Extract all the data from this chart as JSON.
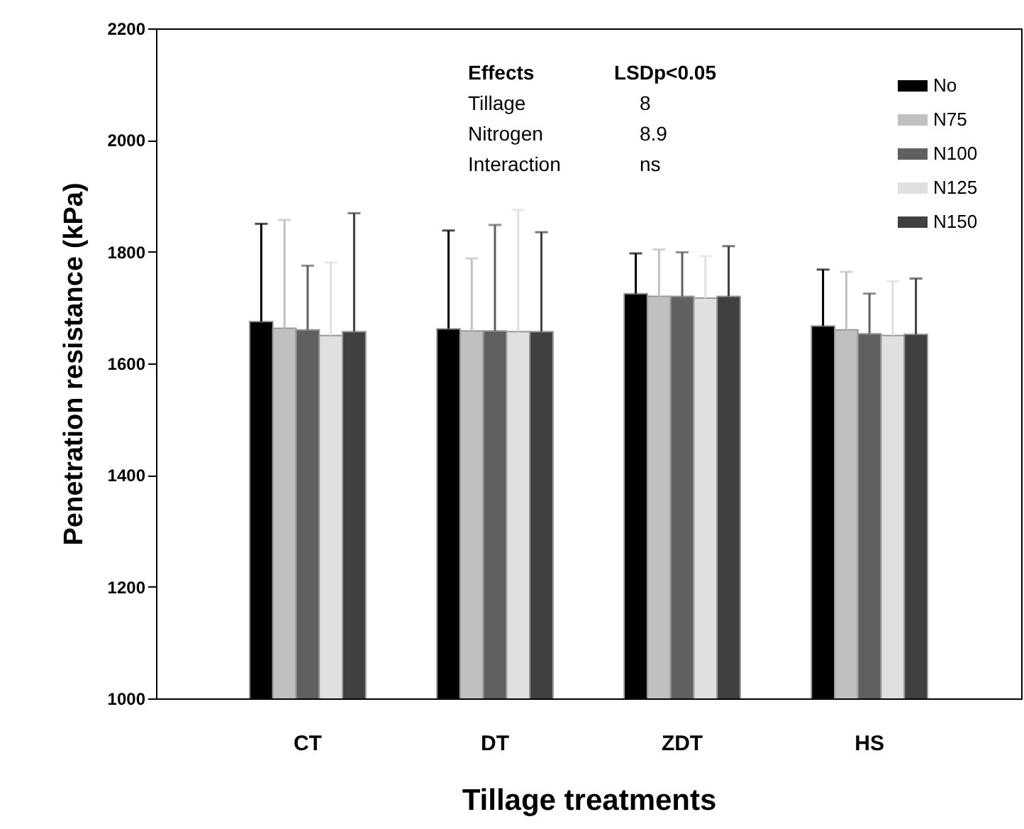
{
  "chart_data": {
    "type": "bar",
    "xlabel": "Tillage treatments",
    "ylabel": "Penetration resistance (kPa)",
    "categories": [
      "CT",
      "DT",
      "ZDT",
      "HS"
    ],
    "series": [
      {
        "name": "No",
        "color": "#000000",
        "values": [
          1675,
          1662,
          1725,
          1667
        ],
        "errors": [
          175,
          176,
          72,
          101
        ]
      },
      {
        "name": "N75",
        "color": "#c0c0c0",
        "values": [
          1663,
          1658,
          1720,
          1660
        ],
        "errors": [
          194,
          130,
          84,
          104
        ]
      },
      {
        "name": "N100",
        "color": "#606060",
        "values": [
          1660,
          1658,
          1720,
          1653
        ],
        "errors": [
          115,
          190,
          79,
          72
        ]
      },
      {
        "name": "N125",
        "color": "#e0e0e0",
        "values": [
          1650,
          1657,
          1717,
          1650
        ],
        "errors": [
          131,
          218,
          75,
          97
        ]
      },
      {
        "name": "N150",
        "color": "#404040",
        "values": [
          1657,
          1657,
          1720,
          1652
        ],
        "errors": [
          212,
          178,
          90,
          100
        ]
      }
    ],
    "ylim": [
      1000,
      2200
    ],
    "yticks": [
      1000,
      1200,
      1400,
      1600,
      1800,
      2000,
      2200
    ],
    "grid": false,
    "legend": "top right",
    "annotations": [
      "Effects",
      "LSDp<0.05",
      "Tillage",
      "8",
      "Nitrogen",
      "8.9",
      "Interaction",
      "ns"
    ]
  }
}
